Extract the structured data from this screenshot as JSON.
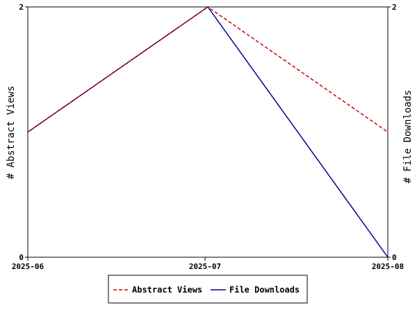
{
  "chart_data": {
    "type": "line",
    "x": [
      "2025-06",
      "2025-07",
      "2025-08"
    ],
    "ylabel_left": "# Abstract Views",
    "ylabel_right": "# File Downloads",
    "ylim_left": [
      0,
      2
    ],
    "ylim_right": [
      0,
      2
    ],
    "yticks_left": [
      "0",
      "2"
    ],
    "yticks_right": [
      "0",
      "2"
    ],
    "grid": false,
    "legend_position": "bottom-center",
    "series": [
      {
        "name": "Abstract Views",
        "axis": "left",
        "values": [
          1,
          2,
          1
        ],
        "color": "#cc0000",
        "style": "dashed"
      },
      {
        "name": "File Downloads",
        "axis": "right",
        "values": [
          1,
          2,
          0
        ],
        "color": "#000099",
        "style": "solid"
      }
    ]
  }
}
